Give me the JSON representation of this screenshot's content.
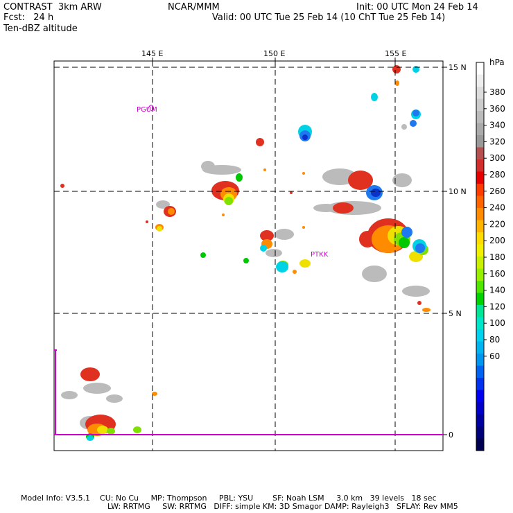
{
  "header": {
    "line1_left": "CONTRAST  3km ARW",
    "line1_mid": "NCAR/MMM",
    "line1_right": "Init: 00 UTC Mon 24 Feb 14",
    "line2_left": "Fcst:   24 h",
    "line2_right": "Valid: 00 UTC Tue 25 Feb 14 (10 ChT Tue 25 Feb 14)",
    "line3_left": "Ten-dBZ altitude"
  },
  "map": {
    "lon_labels": [
      "145 E",
      "150 E",
      "155 E"
    ],
    "lat_labels": [
      "15 N",
      "10 N",
      "5 N",
      "0"
    ],
    "stations": [
      "PGUM",
      "PTKK"
    ],
    "colors": {
      "grid": "#000000",
      "boundary": "#cc00cc",
      "station": "#cc00cc"
    }
  },
  "colorbar": {
    "unit": "hPa",
    "labels": [
      "380",
      "360",
      "340",
      "320",
      "300",
      "280",
      "260",
      "240",
      "220",
      "200",
      "180",
      "160",
      "140",
      "120",
      "100",
      "80",
      "60"
    ],
    "colors": [
      "#ffffff",
      "#eeeeee",
      "#dddddd",
      "#cccccc",
      "#bbbbbb",
      "#aaaaaa",
      "#999999",
      "#b45050",
      "#d22d2d",
      "#e60000",
      "#ff3c00",
      "#ff6400",
      "#ff8c00",
      "#ffb400",
      "#ffdc00",
      "#f0f000",
      "#c8f000",
      "#96f000",
      "#50e600",
      "#00d200",
      "#00e696",
      "#00e6c8",
      "#00d2f0",
      "#00b4f0",
      "#0096f0",
      "#0064f0",
      "#0032f0",
      "#0000f0",
      "#0000c8",
      "#0000a0",
      "#000078",
      "#000050"
    ]
  },
  "footer": {
    "line1": "Model Info: V3.5.1    CU: No Cu     MP: Thompson     PBL: YSU        SF: Noah LSM     3.0 km   39 levels   18 sec",
    "line2": "LW: RRTMG     SW: RRTMG   DIFF: simple KM: 3D Smagor DAMP: Rayleigh3   SFLAY: Rev MM5"
  }
}
